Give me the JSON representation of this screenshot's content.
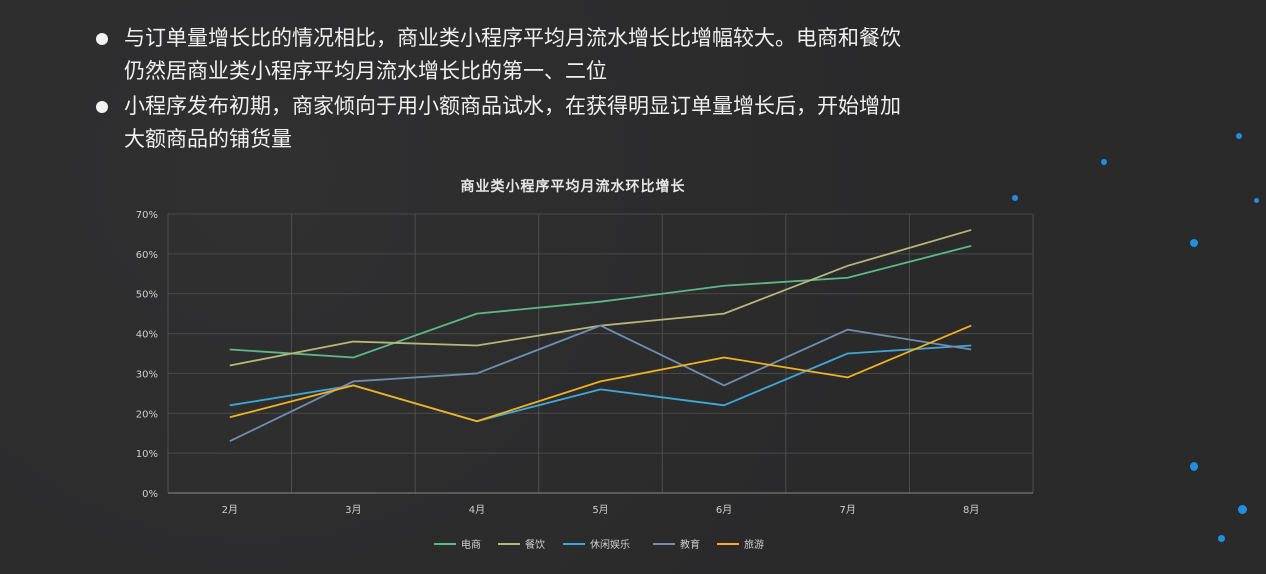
{
  "bullets": [
    {
      "line1": "与订单量增长比的情况相比，商业类小程序平均月流水增长比增幅较大。电商和餐饮",
      "line2": "仍然居商业类小程序平均月流水增长比的第一、二位"
    },
    {
      "line1": "小程序发布初期，商家倾向于用小额商品试水，在获得明显订单量增长后，开始增加",
      "line2": "大额商品的铺货量"
    }
  ],
  "chart_data": {
    "type": "line",
    "title": "商业类小程序平均月流水环比增长",
    "xlabel": "",
    "ylabel": "",
    "categories": [
      "2月",
      "3月",
      "4月",
      "5月",
      "6月",
      "7月",
      "8月"
    ],
    "ylim": [
      0,
      70
    ],
    "yticks": [
      "0%",
      "10%",
      "20%",
      "30%",
      "40%",
      "50%",
      "60%",
      "70%"
    ],
    "grid": true,
    "legend_position": "bottom",
    "series": [
      {
        "name": "电商",
        "color": "#5cb88a",
        "values": [
          36,
          34,
          45,
          48,
          52,
          54,
          62
        ]
      },
      {
        "name": "餐饮",
        "color": "#b7b77a",
        "values": [
          32,
          38,
          37,
          42,
          45,
          57,
          66
        ]
      },
      {
        "name": "休闲娱乐",
        "color": "#3fa9d6",
        "values": [
          22,
          27,
          18,
          26,
          22,
          35,
          37
        ]
      },
      {
        "name": "教育",
        "color": "#6f8fb0",
        "values": [
          13,
          28,
          30,
          42,
          27,
          41,
          36
        ]
      },
      {
        "name": "旅游",
        "color": "#f2b120",
        "values": [
          19,
          27,
          18,
          28,
          34,
          29,
          42
        ]
      }
    ]
  }
}
